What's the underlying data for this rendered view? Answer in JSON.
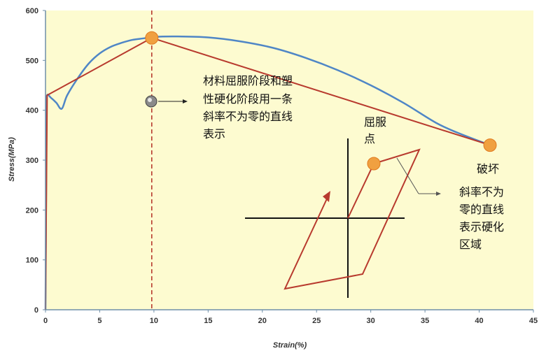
{
  "chart_data": {
    "type": "line",
    "xlabel": "Strain(%)",
    "ylabel": "Stress(MPa)",
    "xlim": [
      0,
      45
    ],
    "ylim": [
      0,
      600
    ],
    "xticks": [
      0,
      5,
      10,
      15,
      20,
      25,
      30,
      35,
      40,
      45
    ],
    "yticks": [
      0,
      100,
      200,
      300,
      400,
      500,
      600
    ],
    "grid": false,
    "legend": "none",
    "colors": {
      "plot_bg": "#fdfbd0",
      "curve": "#4f86c6",
      "approx": "#b83a2e",
      "marker": "#f0a040",
      "axis": "#6f8fa8"
    },
    "series": [
      {
        "role": "stress-strain curve",
        "x": [
          0,
          0.05,
          0.1,
          0.15,
          0.5,
          1.0,
          1.5,
          2.0,
          3,
          4,
          5,
          6,
          7,
          8,
          9,
          10,
          12,
          15,
          18,
          21,
          24,
          27,
          30,
          33,
          36,
          38,
          41
        ],
        "y": [
          0,
          200,
          400,
          430,
          425,
          415,
          403,
          430,
          465,
          494,
          514,
          527,
          535,
          541,
          544,
          547,
          548,
          546,
          538,
          525,
          505,
          480,
          450,
          415,
          375,
          355,
          330
        ]
      },
      {
        "role": "bilinear approximation",
        "x": [
          0,
          0.15,
          9.8,
          41
        ],
        "y": [
          0,
          430,
          545,
          330
        ]
      }
    ],
    "markers": [
      {
        "x": 9.8,
        "y": 545
      },
      {
        "x": 41,
        "y": 330
      }
    ],
    "annotations": {
      "hardening_note": [
        "材料屈服阶段和塑",
        "性硬化阶段用一条",
        "斜率不为零的直线",
        "表示"
      ],
      "yield_point": [
        "屈服",
        "点"
      ],
      "fracture": "破坏",
      "hardening_region": [
        "斜率不为",
        "零的直线",
        "表示硬化",
        "区域"
      ]
    }
  }
}
